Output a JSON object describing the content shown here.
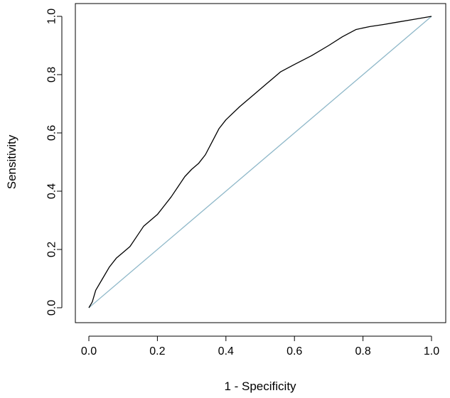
{
  "chart_data": {
    "type": "line",
    "title": "",
    "xlabel": "1 - Specificity",
    "ylabel": "Sensitivity",
    "xlim": [
      0,
      1
    ],
    "ylim": [
      0,
      1
    ],
    "xticks": [
      "0.0",
      "0.2",
      "0.4",
      "0.6",
      "0.8",
      "1.0"
    ],
    "yticks": [
      "0.0",
      "0.2",
      "0.4",
      "0.6",
      "0.8",
      "1.0"
    ],
    "grid": false,
    "legend": "none",
    "series": [
      {
        "color": "#000000",
        "x": [
          0.0,
          0.01,
          0.02,
          0.04,
          0.06,
          0.08,
          0.1,
          0.12,
          0.14,
          0.16,
          0.18,
          0.2,
          0.22,
          0.24,
          0.26,
          0.28,
          0.3,
          0.32,
          0.34,
          0.36,
          0.38,
          0.4,
          0.44,
          0.48,
          0.52,
          0.56,
          0.6,
          0.65,
          0.7,
          0.74,
          0.78,
          0.82,
          0.86,
          0.9,
          0.95,
          1.0
        ],
        "y": [
          0.0,
          0.02,
          0.06,
          0.1,
          0.14,
          0.17,
          0.19,
          0.21,
          0.245,
          0.28,
          0.3,
          0.32,
          0.35,
          0.38,
          0.415,
          0.45,
          0.475,
          0.495,
          0.525,
          0.57,
          0.615,
          0.645,
          0.69,
          0.73,
          0.77,
          0.81,
          0.835,
          0.865,
          0.9,
          0.93,
          0.955,
          0.965,
          0.972,
          0.98,
          0.99,
          1.0
        ]
      },
      {
        "color": "#8fb8c9",
        "x": [
          0,
          1
        ],
        "y": [
          0,
          1
        ]
      }
    ]
  }
}
